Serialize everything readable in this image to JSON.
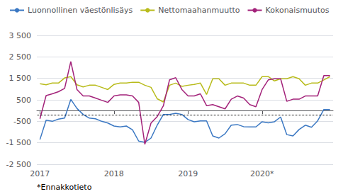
{
  "chart_data": {
    "type": "line",
    "annotations": [
      "*Ennakkotieto"
    ],
    "categories": [
      "2017",
      null,
      null,
      null,
      null,
      null,
      null,
      null,
      null,
      null,
      null,
      null,
      "2018",
      null,
      null,
      null,
      null,
      null,
      null,
      null,
      null,
      null,
      null,
      null,
      "2019",
      null,
      null,
      null,
      null,
      null,
      null,
      null,
      null,
      null,
      null,
      null,
      "2020*",
      null,
      null,
      null,
      null,
      null,
      null,
      null,
      null,
      null,
      null,
      null
    ],
    "series": [
      {
        "name": "Luonnollinen väestönlisäys",
        "color": "#3B78C3",
        "values": [
          -1350,
          -450,
          -500,
          -400,
          -350,
          520,
          100,
          -180,
          -350,
          -380,
          -500,
          -580,
          -720,
          -760,
          -720,
          -900,
          -1420,
          -1480,
          -1280,
          -680,
          -180,
          -180,
          -130,
          -180,
          -420,
          -520,
          -480,
          -480,
          -1180,
          -1280,
          -1080,
          -680,
          -650,
          -750,
          -760,
          -760,
          -520,
          -570,
          -520,
          -300,
          -1120,
          -1180,
          -880,
          -680,
          -780,
          -480,
          50,
          50
        ]
      },
      {
        "name": "Nettomaahanmuutto",
        "color": "#B8BB1A",
        "values": [
          1250,
          1200,
          1280,
          1280,
          1520,
          1580,
          1200,
          1100,
          1180,
          1180,
          1080,
          980,
          1220,
          1280,
          1280,
          1320,
          1320,
          1180,
          1080,
          550,
          400,
          1180,
          1280,
          1130,
          1180,
          1220,
          1280,
          750,
          1480,
          1480,
          1180,
          1280,
          1280,
          1280,
          1180,
          1180,
          1580,
          1580,
          1380,
          1480,
          1480,
          1580,
          1480,
          1180,
          1280,
          1280,
          1430,
          1580
        ]
      },
      {
        "name": "Kokonaismuutos",
        "color": "#A3227A",
        "values": [
          -380,
          700,
          780,
          880,
          1030,
          2280,
          980,
          680,
          680,
          580,
          480,
          380,
          680,
          730,
          730,
          680,
          380,
          -1570,
          -580,
          -280,
          220,
          1430,
          1530,
          980,
          680,
          680,
          780,
          230,
          280,
          180,
          80,
          530,
          680,
          580,
          280,
          180,
          980,
          1430,
          1480,
          1480,
          430,
          530,
          530,
          680,
          680,
          680,
          1630,
          1630
        ]
      }
    ],
    "reference_line": -200,
    "ylim": [
      -2500,
      3500
    ],
    "yticks": [
      {
        "value": -2500,
        "label": "-2 500"
      },
      {
        "value": -1500,
        "label": "-1 500"
      },
      -500,
      500,
      {
        "value": 1500,
        "label": "1 500"
      },
      {
        "value": 2500,
        "label": "2 500"
      },
      {
        "value": 3500,
        "label": "3 500"
      }
    ],
    "grid": true,
    "legend": "upper left"
  }
}
